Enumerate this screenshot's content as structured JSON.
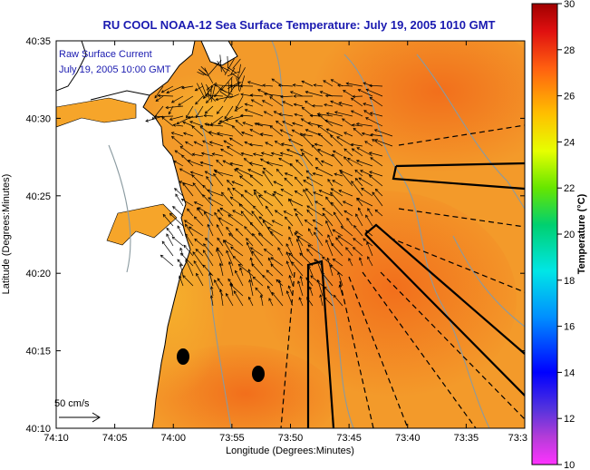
{
  "title": "RU COOL  NOAA-12  Sea Surface Temperature:  July 19, 2005 1010 GMT",
  "annotation": {
    "line1": "Raw Surface Current",
    "line2": "July 19, 2005 10:00 GMT"
  },
  "scale": {
    "label": "50 cm/s"
  },
  "axes": {
    "xlabel": "Longitude (Degrees:Minutes)",
    "ylabel": "Latitude (Degrees:Minutes)",
    "xticks": [
      "74:10",
      "74:05",
      "74:00",
      "73:55",
      "73:50",
      "73:45",
      "73:40",
      "73:35",
      "73:3"
    ],
    "yticks": [
      "40:35",
      "40:30",
      "40:25",
      "40:20",
      "40:15",
      "40:10"
    ]
  },
  "colorbar": {
    "label": "Temperature (°C)",
    "ticks": [
      "30",
      "28",
      "26",
      "24",
      "22",
      "20",
      "18",
      "16",
      "14",
      "12",
      "10"
    ],
    "range": [
      10,
      30
    ]
  },
  "colors": {
    "title": "#1a1ab0",
    "sea": "#f39a2a",
    "land": "#ffffff",
    "coastline": "#000000",
    "bathymetry": "#8a9aa0",
    "annotation": "#1a1ab0"
  }
}
